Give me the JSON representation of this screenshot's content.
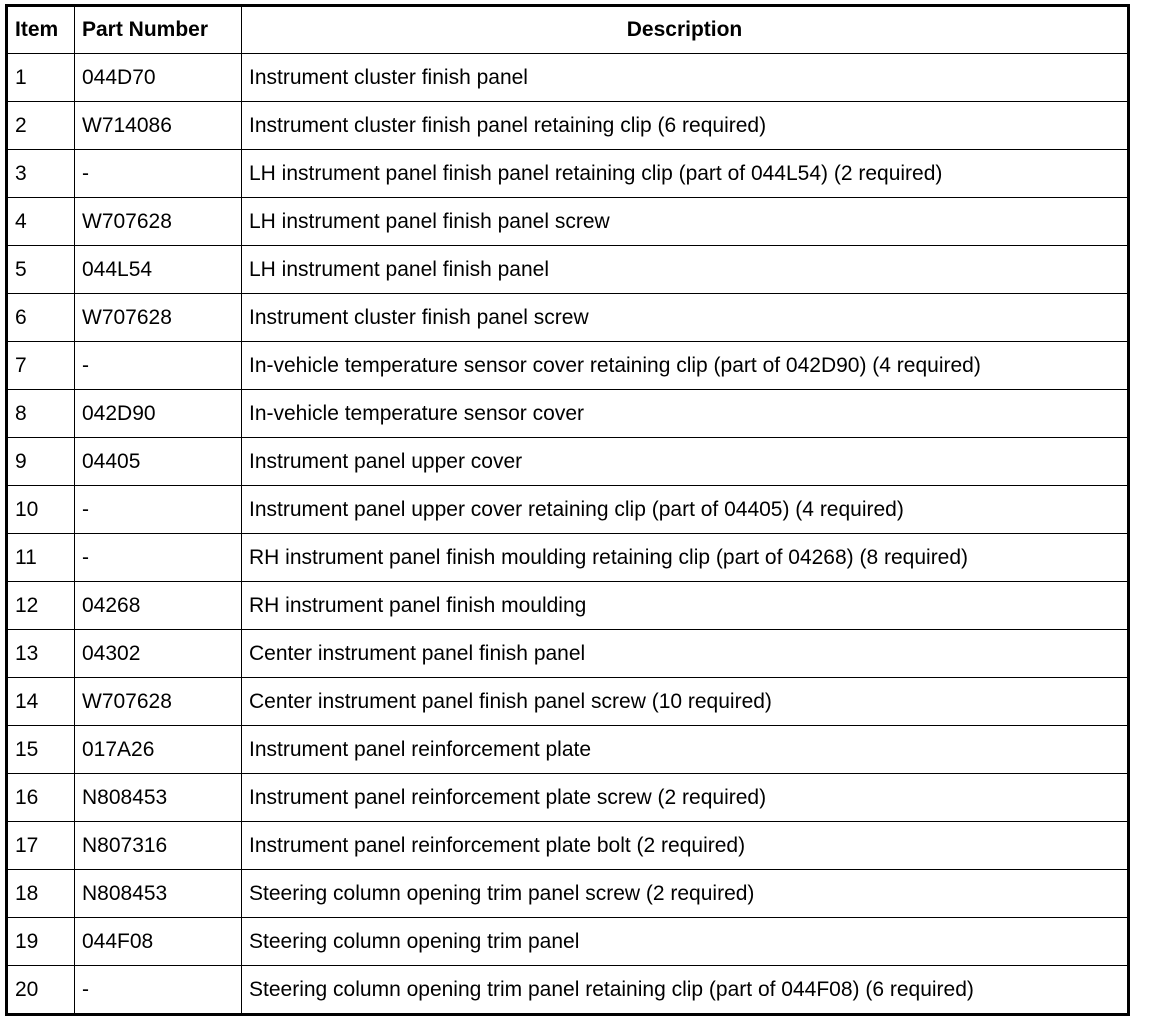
{
  "headers": {
    "item": "Item",
    "part_number": "Part Number",
    "description": "Description"
  },
  "rows": [
    {
      "item": "1",
      "part": "044D70",
      "desc": "Instrument cluster finish panel"
    },
    {
      "item": "2",
      "part": "W714086",
      "desc": "Instrument cluster finish panel retaining clip (6 required)"
    },
    {
      "item": "3",
      "part": "-",
      "desc": "LH instrument panel finish panel retaining clip (part of 044L54) (2 required)"
    },
    {
      "item": "4",
      "part": "W707628",
      "desc": "LH instrument panel finish panel screw"
    },
    {
      "item": "5",
      "part": "044L54",
      "desc": "LH instrument panel finish panel"
    },
    {
      "item": "6",
      "part": "W707628",
      "desc": "Instrument cluster finish panel screw"
    },
    {
      "item": "7",
      "part": "-",
      "desc": "In-vehicle temperature sensor cover retaining clip (part of 042D90) (4 required)"
    },
    {
      "item": "8",
      "part": "042D90",
      "desc": "In-vehicle temperature sensor cover"
    },
    {
      "item": "9",
      "part": "04405",
      "desc": "Instrument panel upper cover"
    },
    {
      "item": "10",
      "part": "-",
      "desc": "Instrument panel upper cover retaining clip (part of 04405) (4 required)"
    },
    {
      "item": "11",
      "part": "-",
      "desc": "RH instrument panel finish moulding retaining clip (part of 04268) (8 required)"
    },
    {
      "item": "12",
      "part": "04268",
      "desc": "RH instrument panel finish moulding"
    },
    {
      "item": "13",
      "part": "04302",
      "desc": "Center instrument panel finish panel"
    },
    {
      "item": "14",
      "part": "W707628",
      "desc": "Center instrument panel finish panel screw (10 required)"
    },
    {
      "item": "15",
      "part": "017A26",
      "desc": "Instrument panel reinforcement plate"
    },
    {
      "item": "16",
      "part": "N808453",
      "desc": "Instrument panel reinforcement plate screw (2 required)"
    },
    {
      "item": "17",
      "part": "N807316",
      "desc": "Instrument panel reinforcement plate bolt (2 required)"
    },
    {
      "item": "18",
      "part": "N808453",
      "desc": "Steering column opening trim panel screw (2 required)"
    },
    {
      "item": "19",
      "part": "044F08",
      "desc": "Steering column opening trim panel"
    },
    {
      "item": "20",
      "part": "-",
      "desc": "Steering column opening trim panel retaining clip (part of 044F08) (6 required)"
    }
  ]
}
